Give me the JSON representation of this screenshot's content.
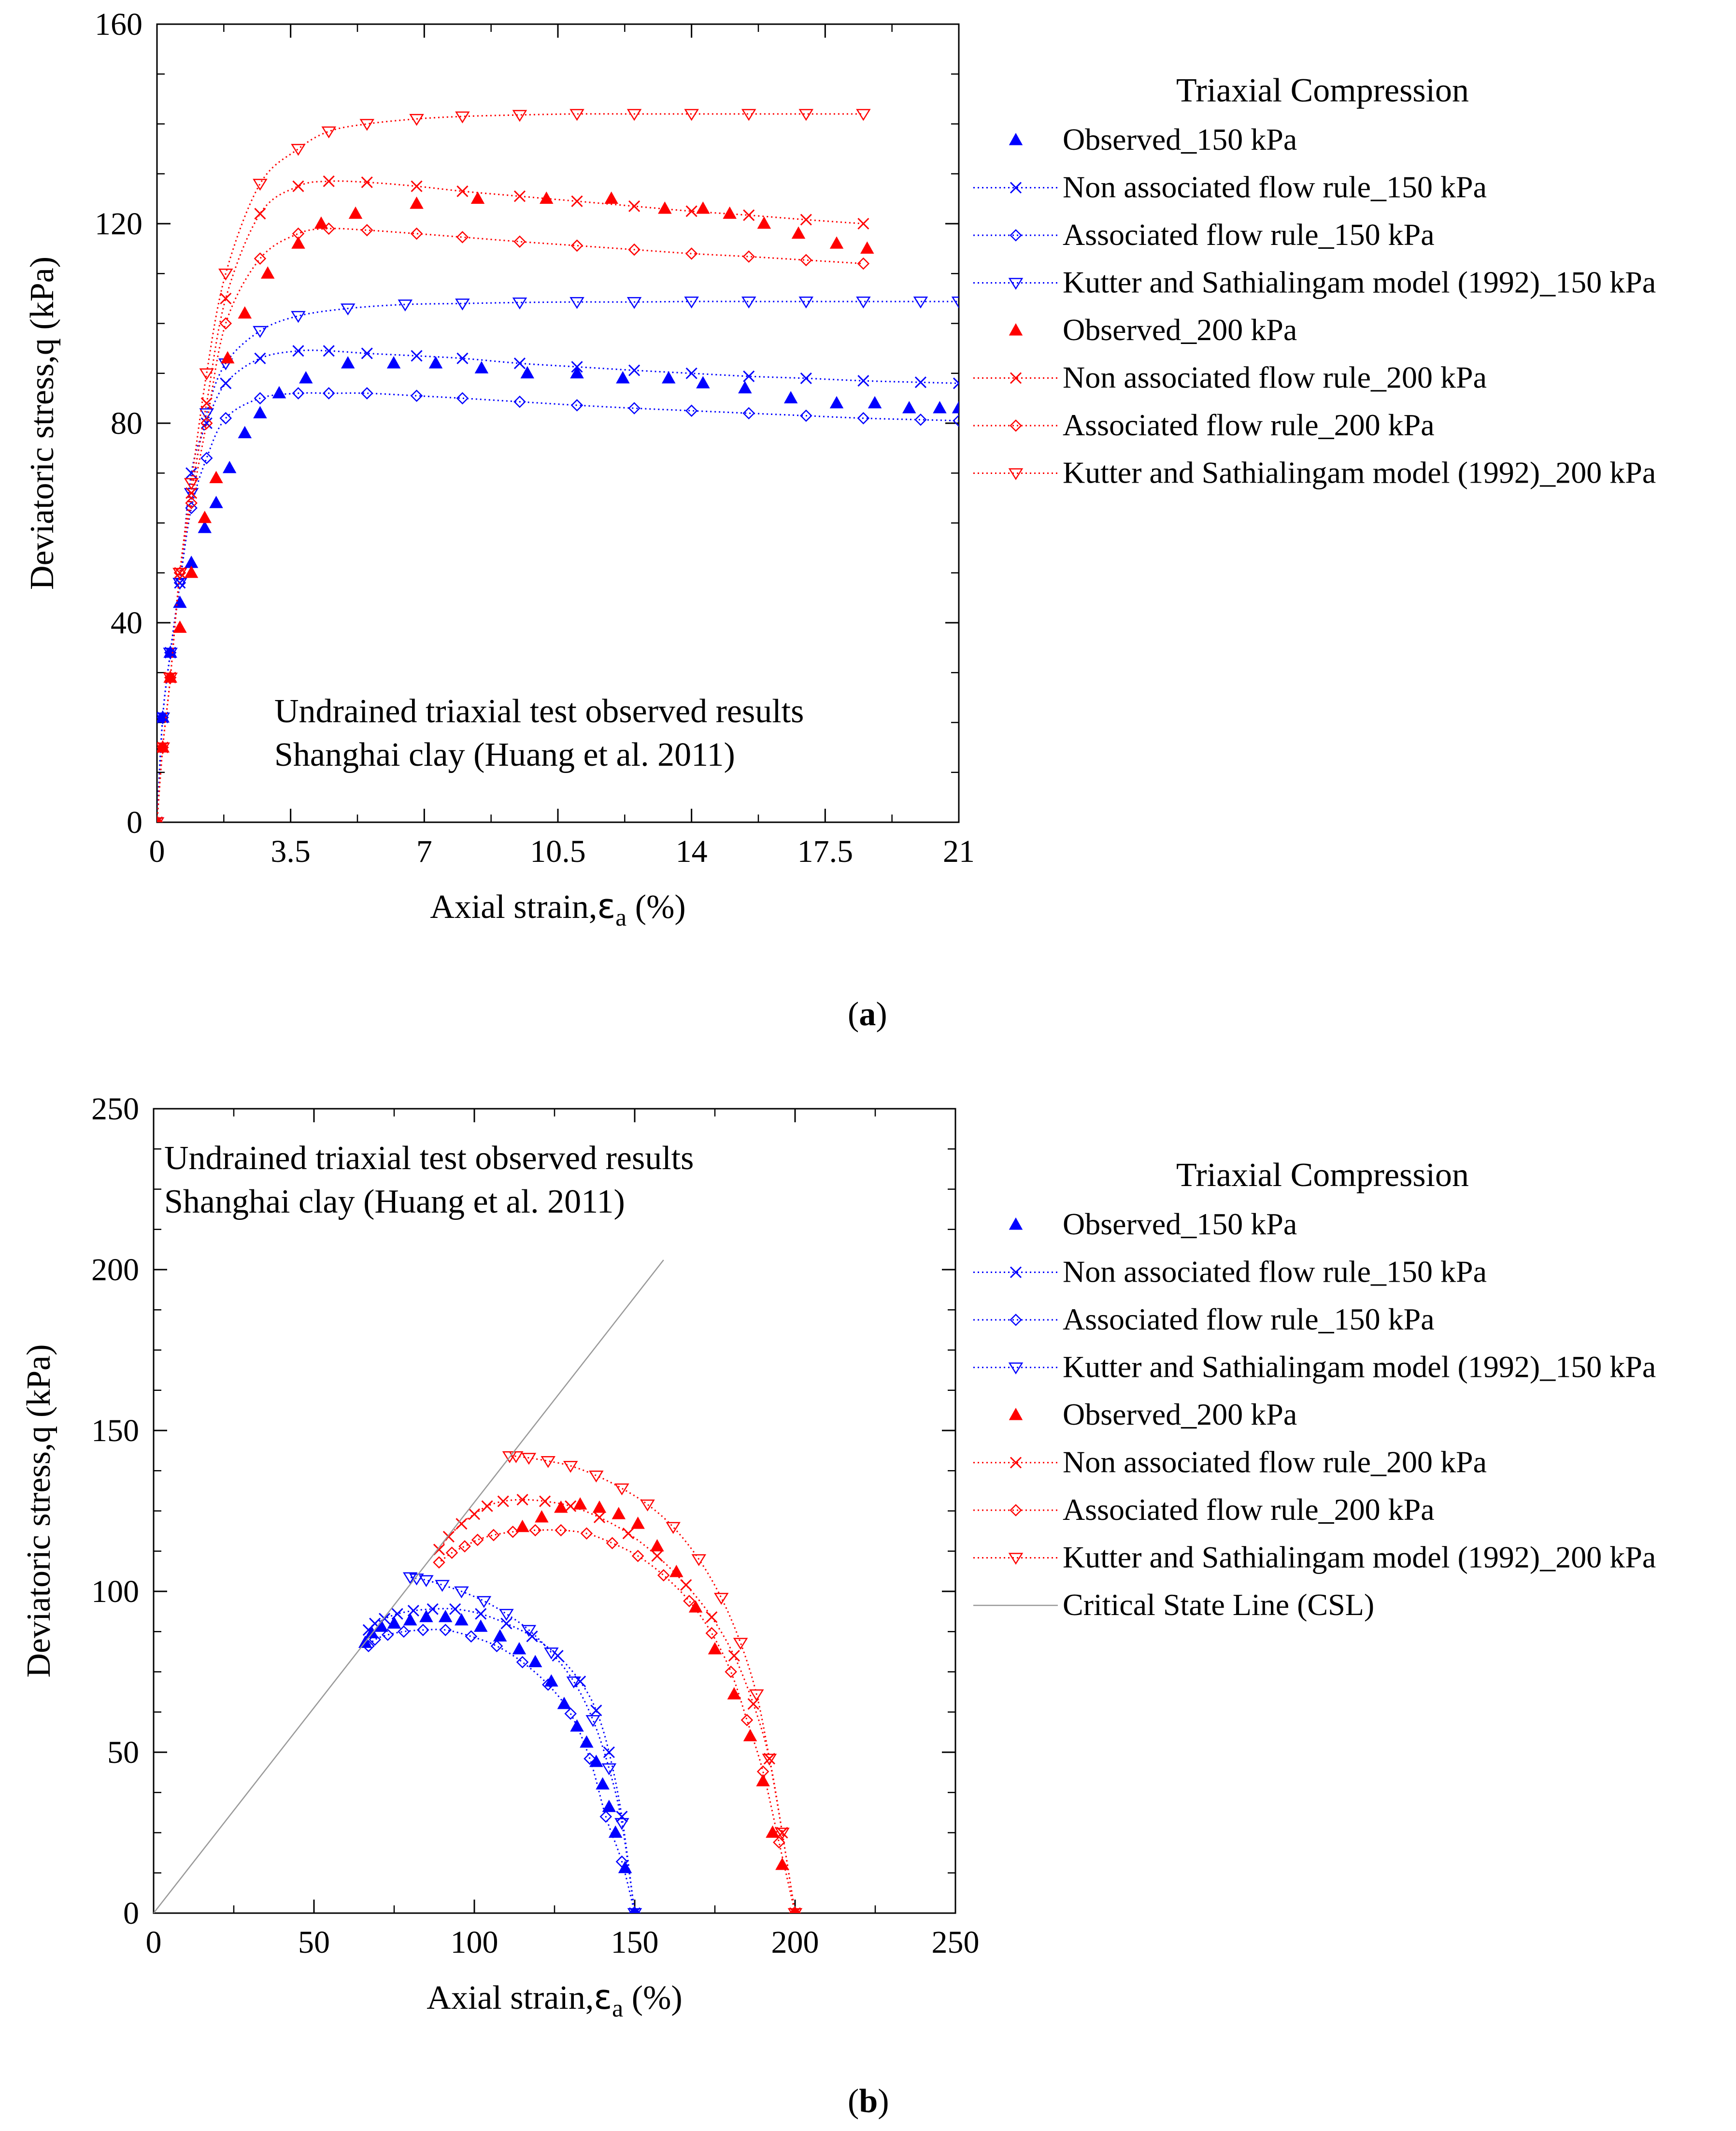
{
  "panels": [
    {
      "id": "a",
      "caption_letter": "a",
      "legend_title": "Triaxial Compression",
      "annotation": [
        "Undrained triaxial test observed results",
        "Shanghai clay  (Huang et al. 2011)"
      ],
      "chart_data": {
        "type": "line",
        "title": "",
        "xlabel_main": "Axial strain,",
        "xlabel_symbol": "ε",
        "xlabel_sub": "a",
        "xlabel_unit": " (%)",
        "ylabel": "Deviatoric stress,q (kPa)",
        "xlim": [
          0,
          21
        ],
        "ylim": [
          0,
          160
        ],
        "xticks": [
          0,
          3.5,
          7,
          10.5,
          14,
          17.5,
          21
        ],
        "xtick_labels": [
          "0",
          "3.5",
          "7",
          "10.5",
          "14",
          "17.5",
          "21"
        ],
        "yticks": [
          0,
          40,
          80,
          120,
          160
        ],
        "ytick_labels": [
          "0",
          "40",
          "80",
          "120",
          "160"
        ],
        "grid": false,
        "legend_position": "outside-right",
        "series": [
          {
            "name": "Observed_150 kPa",
            "color": "#0000ff",
            "marker": "filled-triangle",
            "line": false,
            "x": [
              0,
              0.15,
              0.35,
              0.6,
              0.9,
              1.25,
              1.55,
              1.9,
              2.3,
              2.7,
              3.2,
              3.9,
              5.0,
              6.2,
              7.3,
              8.5,
              9.7,
              11.0,
              12.2,
              13.4,
              14.3,
              15.4,
              16.6,
              17.8,
              18.8,
              19.7,
              20.5,
              21.0
            ],
            "y": [
              0,
              21,
              34,
              44,
              52,
              59,
              64,
              71,
              78,
              82,
              86,
              89,
              92,
              92,
              92,
              91,
              90,
              90,
              89,
              89,
              88,
              87,
              85,
              84,
              84,
              83,
              83,
              83
            ]
          },
          {
            "name": "Non associated flow rule_150 kPa",
            "color": "#0000ff",
            "marker": "x",
            "line": true,
            "x": [
              0,
              0.15,
              0.35,
              0.6,
              0.9,
              1.3,
              1.8,
              2.7,
              3.7,
              4.5,
              5.5,
              6.8,
              8.0,
              9.5,
              11.0,
              12.5,
              14.0,
              15.5,
              17.0,
              18.5,
              20.0,
              21.0
            ],
            "y": [
              0,
              21,
              34,
              48,
              70,
              80,
              88,
              93,
              94.5,
              94.5,
              94,
              93.5,
              93,
              92,
              91.3,
              90.6,
              90,
              89.4,
              89,
              88.5,
              88.2,
              88
            ]
          },
          {
            "name": "Associated flow rule_150 kPa",
            "color": "#0000ff",
            "marker": "open-diamond",
            "line": true,
            "x": [
              0,
              0.15,
              0.35,
              0.6,
              0.9,
              1.3,
              1.8,
              2.7,
              3.7,
              4.5,
              5.5,
              6.8,
              8.0,
              9.5,
              11.0,
              12.5,
              14.0,
              15.5,
              17.0,
              18.5,
              20.0,
              21.0
            ],
            "y": [
              0,
              21,
              34,
              48,
              63,
              73,
              81,
              85,
              86,
              86,
              86,
              85.5,
              85,
              84.3,
              83.6,
              83,
              82.5,
              82,
              81.5,
              81,
              80.7,
              80.5
            ]
          },
          {
            "name": "Kutter and Sathialingam model (1992)_150 kPa",
            "color": "#0000ff",
            "marker": "open-triangle-down",
            "line": true,
            "x": [
              0,
              0.15,
              0.35,
              0.6,
              0.9,
              1.3,
              1.8,
              2.7,
              3.7,
              5.0,
              6.5,
              8.0,
              9.5,
              11.0,
              12.5,
              14.0,
              15.5,
              17.0,
              18.5,
              20.0,
              21.0
            ],
            "y": [
              0,
              21,
              34,
              48,
              66,
              82,
              92,
              98.5,
              101.5,
              103,
              103.8,
              104,
              104.2,
              104.3,
              104.3,
              104.4,
              104.4,
              104.4,
              104.4,
              104.4,
              104.4
            ]
          },
          {
            "name": "Observed_200 kPa",
            "color": "#ff0000",
            "marker": "filled-triangle",
            "line": false,
            "x": [
              0,
              0.15,
              0.35,
              0.6,
              0.9,
              1.25,
              1.55,
              1.85,
              2.3,
              2.9,
              3.7,
              4.3,
              5.2,
              6.8,
              8.4,
              10.2,
              11.9,
              13.3,
              14.3,
              15.0,
              15.9,
              16.8,
              17.8,
              18.6
            ],
            "y": [
              0,
              15,
              29,
              39,
              50,
              61,
              69,
              93,
              102,
              110,
              116,
              120,
              122,
              124,
              125,
              125,
              125,
              123,
              123,
              122,
              120,
              118,
              116,
              115
            ]
          },
          {
            "name": "Non associated flow rule_200 kPa",
            "color": "#ff0000",
            "marker": "x",
            "line": true,
            "x": [
              0,
              0.15,
              0.35,
              0.6,
              0.9,
              1.3,
              1.8,
              2.7,
              3.7,
              4.5,
              5.5,
              6.8,
              8.0,
              9.5,
              11.0,
              12.5,
              14.0,
              15.5,
              17.0,
              18.5
            ],
            "y": [
              0,
              15,
              29,
              50,
              66,
              84,
              105,
              122,
              127.5,
              128.5,
              128.3,
              127.5,
              126.5,
              125.5,
              124.5,
              123.5,
              122.5,
              121.7,
              120.8,
              120
            ]
          },
          {
            "name": "Associated flow rule_200 kPa",
            "color": "#ff0000",
            "marker": "open-diamond",
            "line": true,
            "x": [
              0,
              0.15,
              0.35,
              0.6,
              0.9,
              1.3,
              1.8,
              2.7,
              3.7,
              4.5,
              5.5,
              6.8,
              8.0,
              9.5,
              11.0,
              12.5,
              14.0,
              15.5,
              17.0,
              18.5
            ],
            "y": [
              0,
              15,
              29,
              50,
              64,
              80,
              100,
              113,
              118,
              119,
              118.7,
              118,
              117.3,
              116.4,
              115.6,
              114.8,
              114,
              113.4,
              112.7,
              112
            ]
          },
          {
            "name": "Kutter and Sathialingam model (1992)_200 kPa",
            "color": "#ff0000",
            "marker": "open-triangle-down",
            "line": true,
            "x": [
              0,
              0.15,
              0.35,
              0.6,
              0.9,
              1.3,
              1.8,
              2.7,
              3.7,
              4.5,
              5.5,
              6.8,
              8.0,
              9.5,
              11.0,
              12.5,
              14.0,
              15.5,
              17.0,
              18.5
            ],
            "y": [
              0,
              15,
              29,
              50,
              68,
              90,
              110,
              128,
              135,
              138.5,
              140,
              141,
              141.5,
              141.8,
              142,
              142,
              142,
              142,
              142,
              142
            ]
          }
        ]
      }
    },
    {
      "id": "b",
      "caption_letter": "b",
      "legend_title": "Triaxial Compression",
      "annotation": [
        "Undrained triaxial test observed results",
        "Shanghai clay  (Huang et al. 2011)"
      ],
      "chart_data": {
        "type": "line",
        "title": "",
        "xlabel_main": "Axial strain,",
        "xlabel_symbol": "ε",
        "xlabel_sub": "a",
        "xlabel_unit": " (%)",
        "ylabel": "Deviatoric stress,q (kPa)",
        "xlim": [
          0,
          250
        ],
        "ylim": [
          0,
          250
        ],
        "xticks": [
          0,
          50,
          100,
          150,
          200,
          250
        ],
        "xtick_labels": [
          "0",
          "50",
          "100",
          "150",
          "200",
          "250"
        ],
        "yticks": [
          0,
          50,
          100,
          150,
          200,
          250
        ],
        "ytick_labels": [
          "0",
          "50",
          "100",
          "150",
          "200",
          "250"
        ],
        "grid": false,
        "legend_position": "outside-right",
        "series": [
          {
            "name": "Observed_150 kPa",
            "color": "#0000ff",
            "marker": "filled-triangle",
            "line": false,
            "x": [
              150,
              147,
              144,
              142,
              140,
              138,
              135,
              132,
              128,
              124,
              119,
              114,
              108,
              102,
              96,
              91,
              85,
              80,
              75,
              71,
              68,
              66
            ],
            "y": [
              0,
              14,
              25,
              33,
              40,
              47,
              53,
              58,
              65,
              72,
              78,
              82,
              86,
              89,
              91,
              92,
              92,
              91,
              90,
              89,
              87,
              84
            ]
          },
          {
            "name": "Non associated flow rule_150 kPa",
            "color": "#0000ff",
            "marker": "x",
            "line": true,
            "x": [
              150,
              146,
              142,
              138,
              133,
              126,
              118,
              110,
              102,
              94,
              87,
              81,
              76,
              72,
              69,
              67
            ],
            "y": [
              0,
              30,
              50,
              63,
              72,
              80,
              86,
              90,
              93,
              94.5,
              94.5,
              94,
              93,
              91.5,
              90,
              88
            ]
          },
          {
            "name": "Associated flow rule_150 kPa",
            "color": "#0000ff",
            "marker": "open-diamond",
            "line": true,
            "x": [
              150,
              146,
              141,
              136,
              130,
              123,
              115,
              107,
              99,
              91,
              84,
              78,
              73,
              69,
              67
            ],
            "y": [
              0,
              16,
              30,
              48,
              62,
              71,
              78,
              83,
              86,
              88,
              88,
              87.5,
              86.5,
              85,
              83
            ]
          },
          {
            "name": "Kutter and Sathialingam model (1992)_150 kPa",
            "color": "#0000ff",
            "marker": "open-triangle-down",
            "line": true,
            "x": [
              150,
              146,
              142,
              137,
              131,
              124,
              117,
              110,
              103,
              96,
              90,
              85,
              82,
              80
            ],
            "y": [
              0,
              28,
              45,
              60,
              72,
              81,
              88,
              93,
              97,
              100,
              102,
              103.5,
              104,
              104.4
            ]
          },
          {
            "name": "Observed_200 kPa",
            "color": "#ff0000",
            "marker": "filled-triangle",
            "line": false,
            "x": [
              200,
              196,
              193,
              190,
              186,
              181,
              175,
              169,
              163,
              157,
              151,
              145,
              139,
              133,
              127,
              121,
              115
            ],
            "y": [
              0,
              15,
              25,
              41,
              55,
              68,
              82,
              95,
              106,
              114,
              121,
              124,
              126,
              127,
              126,
              123,
              120
            ]
          },
          {
            "name": "Non associated flow rule_200 kPa",
            "color": "#ff0000",
            "marker": "x",
            "line": true,
            "x": [
              200,
              196,
              192,
              187,
              181,
              174,
              166,
              157,
              148,
              139,
              130,
              122,
              115,
              109,
              104,
              100,
              96,
              92,
              89
            ],
            "y": [
              0,
              25,
              48,
              65,
              80,
              92,
              102,
              111,
              118,
              123,
              126.5,
              128,
              128.5,
              128,
              126.5,
              124,
              121,
              117,
              113
            ]
          },
          {
            "name": "Associated flow rule_200 kPa",
            "color": "#ff0000",
            "marker": "open-diamond",
            "line": true,
            "x": [
              200,
              195,
              190,
              185,
              180,
              174,
              167,
              159,
              151,
              143,
              135,
              127,
              119,
              112,
              106,
              101,
              97,
              93,
              89
            ],
            "y": [
              0,
              22,
              44,
              60,
              75,
              87,
              97,
              105,
              111,
              115,
              118,
              119,
              119,
              118.5,
              117.5,
              116,
              114,
              112,
              109
            ]
          },
          {
            "name": "Kutter and Sathialingam model (1992)_200 kPa",
            "color": "#ff0000",
            "marker": "open-triangle-down",
            "line": true,
            "x": [
              200,
              196,
              192,
              188,
              183,
              177,
              170,
              162,
              154,
              146,
              138,
              130,
              123,
              117,
              113,
              111
            ],
            "y": [
              0,
              25,
              48,
              68,
              84,
              98,
              110,
              120,
              127,
              132,
              136,
              139,
              140.5,
              141.5,
              142,
              142
            ]
          },
          {
            "name": "Critical State Line (CSL)",
            "color": "#999999",
            "marker": "none",
            "line": true,
            "thin": true,
            "x": [
              0,
              159
            ],
            "y": [
              0,
              203
            ]
          }
        ]
      }
    }
  ]
}
